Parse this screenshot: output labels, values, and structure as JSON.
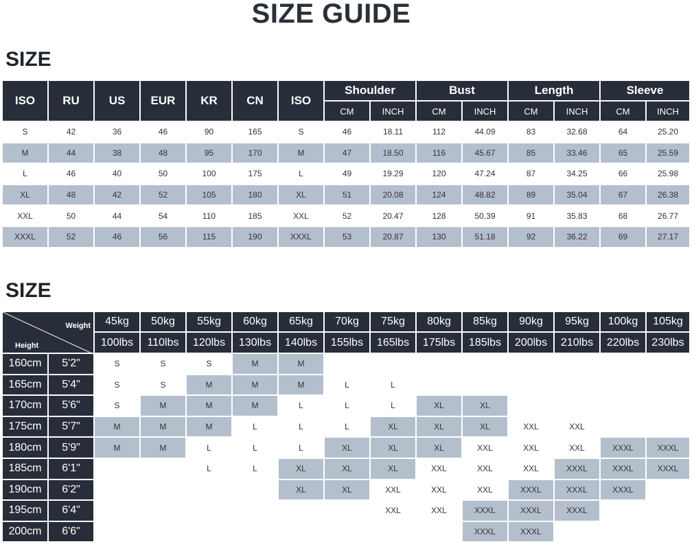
{
  "title": "SIZE GUIDE",
  "section1": {
    "label": "SIZE",
    "headers": [
      "ISO",
      "RU",
      "US",
      "EUR",
      "KR",
      "CN",
      "ISO"
    ],
    "groups": [
      "Shoulder",
      "Bust",
      "Length",
      "Sleeve"
    ],
    "units": [
      "CM",
      "INCH"
    ],
    "rows": [
      [
        "S",
        "42",
        "36",
        "46",
        "90",
        "165",
        "S",
        "46",
        "18.11",
        "112",
        "44.09",
        "83",
        "32.68",
        "64",
        "25.20"
      ],
      [
        "M",
        "44",
        "38",
        "48",
        "95",
        "170",
        "M",
        "47",
        "18.50",
        "116",
        "45.67",
        "85",
        "33.46",
        "65",
        "25.59"
      ],
      [
        "L",
        "46",
        "40",
        "50",
        "100",
        "175",
        "L",
        "49",
        "19.29",
        "120",
        "47.24",
        "87",
        "34.25",
        "66",
        "25.98"
      ],
      [
        "XL",
        "48",
        "42",
        "52",
        "105",
        "180",
        "XL",
        "51",
        "20.08",
        "124",
        "48.82",
        "89",
        "35.04",
        "67",
        "26.38"
      ],
      [
        "XXL",
        "50",
        "44",
        "54",
        "110",
        "185",
        "XXL",
        "52",
        "20.47",
        "128",
        "50.39",
        "91",
        "35.83",
        "68",
        "26.77"
      ],
      [
        "XXXL",
        "52",
        "46",
        "56",
        "115",
        "190",
        "XXXL",
        "53",
        "20.87",
        "130",
        "51.18",
        "92",
        "36.22",
        "69",
        "27.17"
      ]
    ]
  },
  "section2": {
    "label": "SIZE",
    "weight_label": "Weight",
    "height_label": "Height",
    "kg": [
      "45kg",
      "50kg",
      "55kg",
      "60kg",
      "65kg",
      "70kg",
      "75kg",
      "80kg",
      "85kg",
      "90kg",
      "95kg",
      "100kg",
      "105kg"
    ],
    "lbs": [
      "100lbs",
      "110lbs",
      "120lbs",
      "130lbs",
      "140lbs",
      "155lbs",
      "165lbs",
      "175lbs",
      "185lbs",
      "200lbs",
      "210lbs",
      "220lbs",
      "230lbs"
    ],
    "rows": [
      {
        "cm": "160cm",
        "ft": "5'2\"",
        "cells": [
          "S",
          "S",
          "S",
          "M",
          "M",
          "",
          "",
          "",
          "",
          "",
          "",
          "",
          ""
        ],
        "shade": [
          0,
          0,
          0,
          1,
          1,
          0,
          0,
          0,
          0,
          0,
          0,
          0,
          0
        ]
      },
      {
        "cm": "165cm",
        "ft": "5'4\"",
        "cells": [
          "S",
          "S",
          "M",
          "M",
          "M",
          "L",
          "L",
          "",
          "",
          "",
          "",
          "",
          ""
        ],
        "shade": [
          0,
          0,
          1,
          1,
          1,
          0,
          0,
          0,
          0,
          0,
          0,
          0,
          0
        ]
      },
      {
        "cm": "170cm",
        "ft": "5'6\"",
        "cells": [
          "S",
          "M",
          "M",
          "M",
          "L",
          "L",
          "L",
          "XL",
          "XL",
          "",
          "",
          "",
          ""
        ],
        "shade": [
          0,
          1,
          1,
          1,
          0,
          0,
          0,
          1,
          1,
          0,
          0,
          0,
          0
        ]
      },
      {
        "cm": "175cm",
        "ft": "5'7\"",
        "cells": [
          "M",
          "M",
          "M",
          "L",
          "L",
          "L",
          "XL",
          "XL",
          "XL",
          "XXL",
          "XXL",
          "",
          ""
        ],
        "shade": [
          1,
          1,
          1,
          0,
          0,
          0,
          1,
          1,
          1,
          0,
          0,
          0,
          0
        ]
      },
      {
        "cm": "180cm",
        "ft": "5'9\"",
        "cells": [
          "M",
          "M",
          "L",
          "L",
          "L",
          "XL",
          "XL",
          "XL",
          "XXL",
          "XXL",
          "XXL",
          "XXXL",
          "XXXL"
        ],
        "shade": [
          1,
          1,
          0,
          0,
          0,
          1,
          1,
          1,
          0,
          0,
          0,
          1,
          1
        ]
      },
      {
        "cm": "185cm",
        "ft": "6'1\"",
        "cells": [
          "",
          "",
          "L",
          "L",
          "XL",
          "XL",
          "XL",
          "XXL",
          "XXL",
          "XXL",
          "XXXL",
          "XXXL",
          "XXXL"
        ],
        "shade": [
          0,
          0,
          0,
          0,
          1,
          1,
          1,
          0,
          0,
          0,
          1,
          1,
          1
        ]
      },
      {
        "cm": "190cm",
        "ft": "6'2\"",
        "cells": [
          "",
          "",
          "",
          "",
          "XL",
          "XL",
          "XXL",
          "XXL",
          "XXL",
          "XXXL",
          "XXXL",
          "XXXL",
          ""
        ],
        "shade": [
          0,
          0,
          0,
          0,
          1,
          1,
          0,
          0,
          0,
          1,
          1,
          1,
          0
        ]
      },
      {
        "cm": "195cm",
        "ft": "6'4\"",
        "cells": [
          "",
          "",
          "",
          "",
          "",
          "",
          "XXL",
          "XXL",
          "XXXL",
          "XXXL",
          "XXXL",
          "",
          ""
        ],
        "shade": [
          0,
          0,
          0,
          0,
          0,
          0,
          0,
          0,
          1,
          1,
          1,
          0,
          0
        ]
      },
      {
        "cm": "200cm",
        "ft": "6'6\"",
        "cells": [
          "",
          "",
          "",
          "",
          "",
          "",
          "",
          "",
          "XXXL",
          "XXXL",
          "",
          "",
          ""
        ],
        "shade": [
          0,
          0,
          0,
          0,
          0,
          0,
          0,
          0,
          1,
          1,
          0,
          0,
          0
        ]
      }
    ]
  }
}
